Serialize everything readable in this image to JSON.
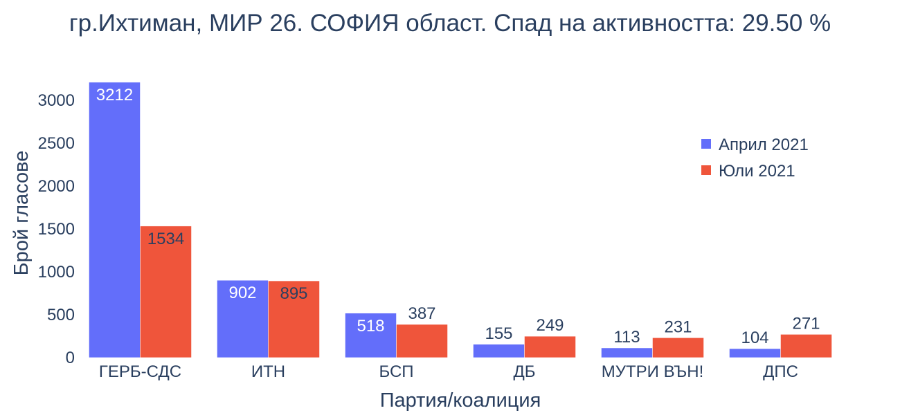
{
  "chart_data": {
    "type": "bar",
    "title": "гр.Ихтиман, МИР 26. СОФИЯ област. Спад на активността: 29.50 %",
    "xlabel": "Партия/коалиция",
    "ylabel": "Брой гласове",
    "categories": [
      "ГЕРБ-СДС",
      "ИТН",
      "БСП",
      "ДБ",
      "МУТРИ ВЪН!",
      "ДПС"
    ],
    "series": [
      {
        "name": "Април 2021",
        "color": "#636efa",
        "values": [
          3212,
          902,
          518,
          155,
          113,
          104
        ]
      },
      {
        "name": "Юли 2021",
        "color": "#ef553b",
        "values": [
          1534,
          895,
          387,
          249,
          231,
          271
        ]
      }
    ],
    "yticks": [
      0,
      500,
      1000,
      1500,
      2000,
      2500,
      3000
    ],
    "ylim": [
      0,
      3381
    ],
    "grid": false,
    "legend_position": "top-right"
  }
}
